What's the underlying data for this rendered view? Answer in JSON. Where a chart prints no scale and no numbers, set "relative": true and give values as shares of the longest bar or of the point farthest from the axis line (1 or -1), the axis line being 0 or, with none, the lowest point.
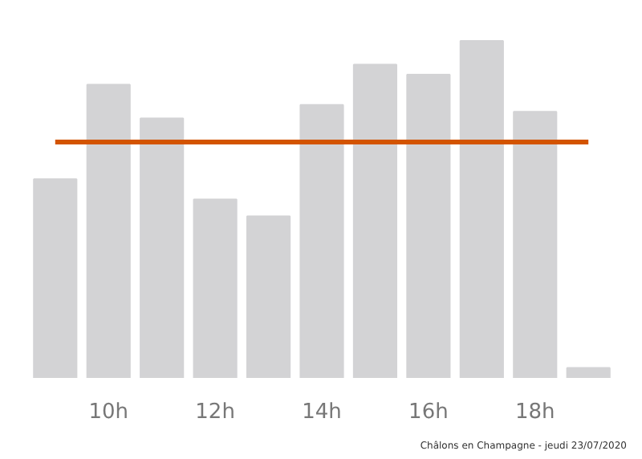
{
  "chart_data": {
    "type": "bar",
    "relative": true,
    "categories": [
      null,
      "10h",
      null,
      "12h",
      null,
      "14h",
      null,
      "16h",
      null,
      "18h",
      null
    ],
    "values": [
      0.59,
      0.87,
      0.77,
      0.53,
      0.48,
      0.81,
      0.93,
      0.9,
      1,
      0.79,
      0.03
    ],
    "color": "#d3d3d5",
    "ref_lines": [
      {
        "axis": "y",
        "value": 0.7,
        "color": "#d35400"
      }
    ],
    "annotations": [
      "Châlons en Champagne - jeudi 23/07/2020"
    ],
    "grid": false
  }
}
